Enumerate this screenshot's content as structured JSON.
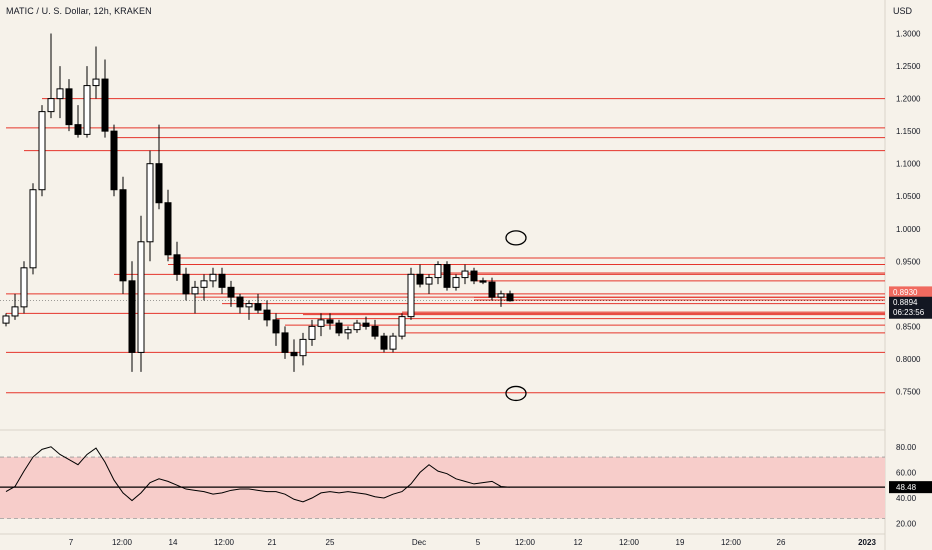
{
  "header": {
    "title": "MATIC / U. S. Dollar, 12h, KRAKEN",
    "currency": "USD"
  },
  "colors": {
    "background": "#f6f2ea",
    "level_line": "#e5352b",
    "candle": "#000000",
    "rsi_band": "#f7cdca",
    "price_badge": "#131722",
    "alert_badge": "#f06a5f"
  },
  "chart_data": [
    {
      "type": "candlestick",
      "ylim": [
        0.7,
        1.33
      ],
      "y_ticks": [
        "1.3000",
        "1.2500",
        "1.2000",
        "1.1500",
        "1.1000",
        "1.0500",
        "1.0000",
        "0.9500",
        "0.9000",
        "0.8500",
        "0.8000",
        "0.7500"
      ],
      "x_ticks": [
        "7",
        "12:00",
        "14",
        "12:00",
        "21",
        "25",
        "Dec",
        "5",
        "12:00",
        "12",
        "12:00",
        "19",
        "12:00",
        "26",
        "2023"
      ],
      "ohlc": [
        [
          0.855,
          0.87,
          0.85,
          0.866
        ],
        [
          0.866,
          0.9,
          0.86,
          0.88
        ],
        [
          0.88,
          0.95,
          0.87,
          0.94
        ],
        [
          0.94,
          1.07,
          0.93,
          1.06
        ],
        [
          1.06,
          1.19,
          1.05,
          1.18
        ],
        [
          1.18,
          1.3,
          1.17,
          1.2
        ],
        [
          1.2,
          1.25,
          1.17,
          1.215
        ],
        [
          1.215,
          1.23,
          1.15,
          1.16
        ],
        [
          1.16,
          1.19,
          1.14,
          1.145
        ],
        [
          1.145,
          1.25,
          1.14,
          1.22
        ],
        [
          1.22,
          1.28,
          1.2,
          1.23
        ],
        [
          1.23,
          1.26,
          1.14,
          1.15
        ],
        [
          1.15,
          1.16,
          1.05,
          1.06
        ],
        [
          1.06,
          1.08,
          0.9,
          0.92
        ],
        [
          0.92,
          0.95,
          0.78,
          0.81
        ],
        [
          0.81,
          1.02,
          0.78,
          0.98
        ],
        [
          0.98,
          1.12,
          0.95,
          1.1
        ],
        [
          1.1,
          1.16,
          1.03,
          1.04
        ],
        [
          1.04,
          1.06,
          0.95,
          0.96
        ],
        [
          0.96,
          0.98,
          0.92,
          0.93
        ],
        [
          0.93,
          0.94,
          0.89,
          0.9
        ],
        [
          0.9,
          0.92,
          0.87,
          0.91
        ],
        [
          0.91,
          0.93,
          0.89,
          0.92
        ],
        [
          0.92,
          0.94,
          0.91,
          0.93
        ],
        [
          0.93,
          0.94,
          0.9,
          0.91
        ],
        [
          0.91,
          0.92,
          0.88,
          0.895
        ],
        [
          0.895,
          0.9,
          0.87,
          0.88
        ],
        [
          0.88,
          0.89,
          0.86,
          0.885
        ],
        [
          0.885,
          0.9,
          0.87,
          0.875
        ],
        [
          0.875,
          0.89,
          0.85,
          0.86
        ],
        [
          0.86,
          0.87,
          0.82,
          0.84
        ],
        [
          0.84,
          0.85,
          0.8,
          0.81
        ],
        [
          0.81,
          0.83,
          0.78,
          0.805
        ],
        [
          0.805,
          0.84,
          0.79,
          0.83
        ],
        [
          0.83,
          0.86,
          0.82,
          0.85
        ],
        [
          0.85,
          0.87,
          0.835,
          0.86
        ],
        [
          0.86,
          0.87,
          0.845,
          0.855
        ],
        [
          0.855,
          0.86,
          0.835,
          0.84
        ],
        [
          0.84,
          0.85,
          0.83,
          0.845
        ],
        [
          0.845,
          0.86,
          0.84,
          0.855
        ],
        [
          0.855,
          0.865,
          0.845,
          0.85
        ],
        [
          0.85,
          0.86,
          0.83,
          0.835
        ],
        [
          0.835,
          0.84,
          0.81,
          0.815
        ],
        [
          0.815,
          0.84,
          0.81,
          0.835
        ],
        [
          0.835,
          0.87,
          0.83,
          0.865
        ],
        [
          0.865,
          0.94,
          0.86,
          0.93
        ],
        [
          0.93,
          0.945,
          0.91,
          0.915
        ],
        [
          0.915,
          0.93,
          0.9,
          0.925
        ],
        [
          0.925,
          0.95,
          0.915,
          0.945
        ],
        [
          0.945,
          0.95,
          0.905,
          0.91
        ],
        [
          0.91,
          0.93,
          0.905,
          0.925
        ],
        [
          0.925,
          0.945,
          0.915,
          0.935
        ],
        [
          0.935,
          0.94,
          0.915,
          0.92
        ],
        [
          0.92,
          0.925,
          0.915,
          0.918
        ],
        [
          0.918,
          0.925,
          0.89,
          0.895
        ],
        [
          0.895,
          0.905,
          0.88,
          0.9
        ],
        [
          0.9,
          0.905,
          0.888,
          0.8894
        ]
      ],
      "levels": [
        {
          "price": 0.9,
          "from": 0
        },
        {
          "price": 0.87,
          "from": 0
        },
        {
          "price": 0.81,
          "from": 0
        },
        {
          "price": 1.12,
          "from": 2
        },
        {
          "price": 1.155,
          "from": 0
        },
        {
          "price": 1.14,
          "from": 12
        },
        {
          "price": 1.2,
          "from": 4
        },
        {
          "price": 0.93,
          "from": 12
        },
        {
          "price": 0.955,
          "from": 18
        },
        {
          "price": 0.945,
          "from": 18
        },
        {
          "price": 0.895,
          "from": 21
        },
        {
          "price": 0.885,
          "from": 24
        },
        {
          "price": 0.862,
          "from": 30
        },
        {
          "price": 0.852,
          "from": 31
        },
        {
          "price": 0.868,
          "from": 33
        },
        {
          "price": 0.932,
          "from": 48
        },
        {
          "price": 0.92,
          "from": 52
        },
        {
          "price": 0.8945,
          "from": 52
        },
        {
          "price": 0.8905,
          "from": 52
        },
        {
          "price": 0.872,
          "from": 44
        },
        {
          "price": 0.84,
          "from": 44
        },
        {
          "price": 0.748,
          "from": 0
        }
      ],
      "markers": [
        {
          "label": "0.8930",
          "price": 0.893,
          "kind": "alert"
        },
        {
          "label": "0.8894",
          "price": 0.8894,
          "kind": "price"
        },
        {
          "label": "06:23:56",
          "kind": "countdown"
        }
      ]
    },
    {
      "type": "line",
      "name": "RSI",
      "ylim": [
        15,
        90
      ],
      "y_ticks": [
        "80.00",
        "60.00",
        "40.00",
        "20.00"
      ],
      "band": [
        24,
        72
      ],
      "current": "48.48",
      "values": [
        45,
        49,
        61,
        72,
        78,
        80,
        74,
        70,
        66,
        74,
        79,
        68,
        54,
        44,
        38,
        44,
        52,
        55,
        53,
        50,
        47,
        46,
        45,
        43,
        44,
        46,
        47,
        47,
        46,
        45,
        45,
        43,
        39,
        37,
        40,
        44,
        45,
        44,
        45,
        44,
        43,
        41,
        40,
        43,
        45,
        51,
        60,
        66,
        61,
        59,
        55,
        53,
        51,
        52,
        53,
        49,
        48.48
      ]
    }
  ],
  "annotations": [
    {
      "shape": "ellipse",
      "price": 0.986,
      "index": 57
    },
    {
      "shape": "ellipse",
      "price": 0.747,
      "index": 57
    }
  ]
}
